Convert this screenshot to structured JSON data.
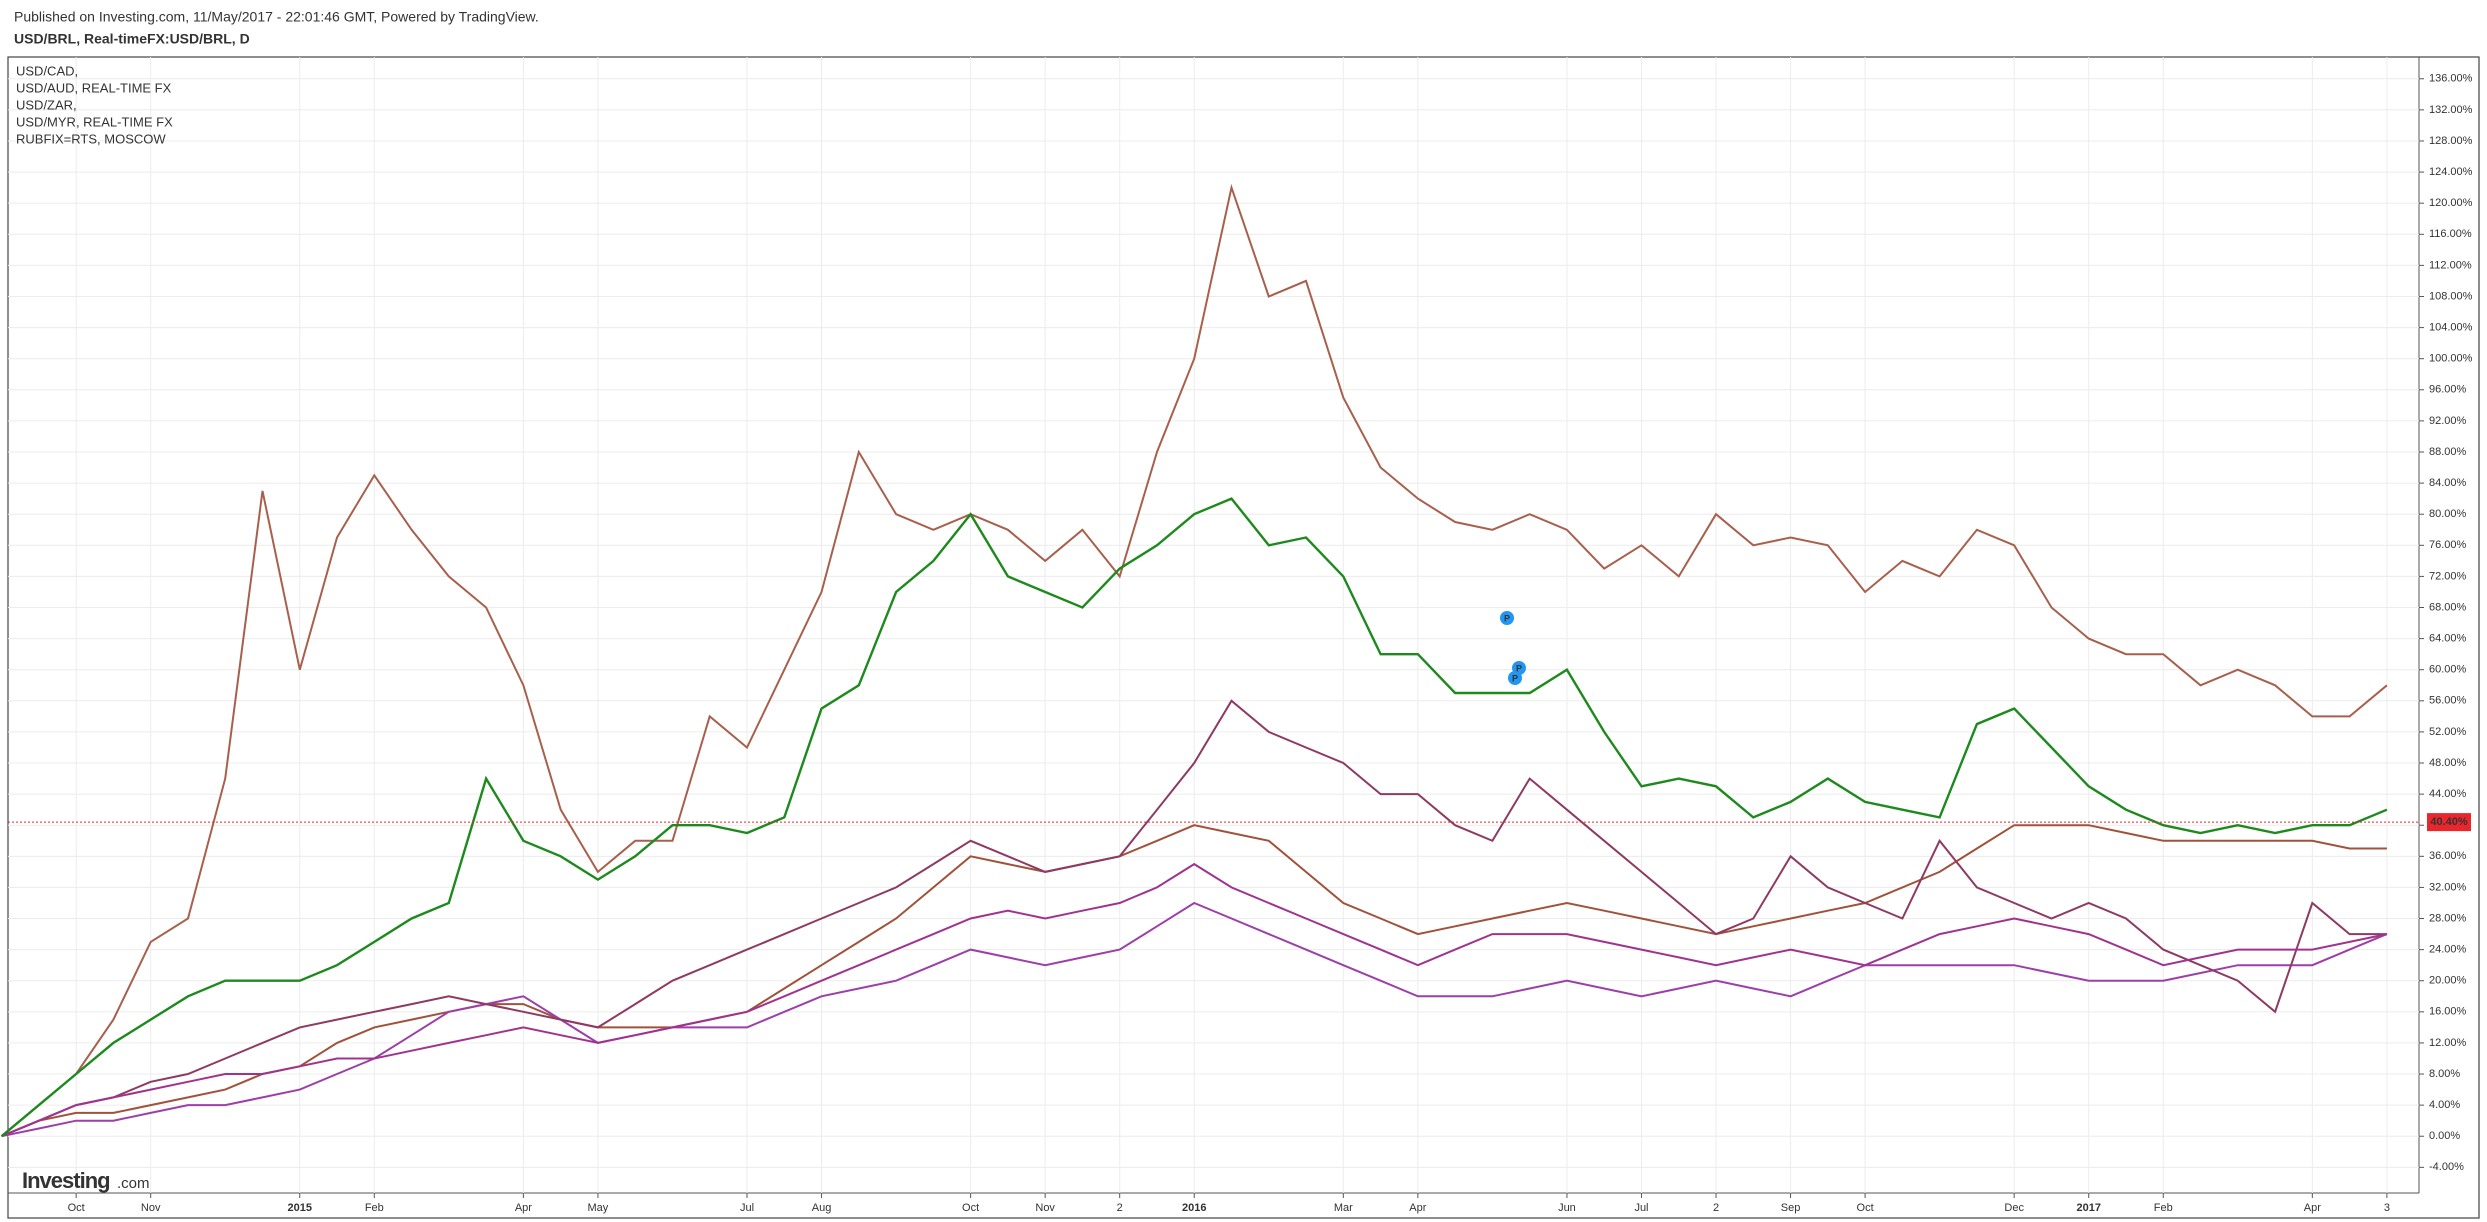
{
  "header": {
    "published": "Published on Investing.com, 11/May/2017 - 22:01:46 GMT, Powered by TradingView.",
    "symbol": "USD/BRL, Real-timeFX:USD/BRL, D"
  },
  "logo": {
    "brand": "Investing",
    "suffix": ".com"
  },
  "event_markers": [
    "P",
    "P",
    "P"
  ],
  "chart_data": {
    "type": "line",
    "categories": [
      null,
      null,
      "Oct",
      null,
      "Nov",
      null,
      null,
      null,
      "2015",
      null,
      "Feb",
      null,
      null,
      null,
      "Apr",
      null,
      "May",
      null,
      null,
      null,
      "Jul",
      null,
      "Aug",
      null,
      null,
      null,
      "Oct",
      null,
      "Nov",
      null,
      "2",
      null,
      "2016",
      null,
      null,
      null,
      "Mar",
      null,
      "Apr",
      null,
      null,
      null,
      "Jun",
      null,
      "Jul",
      null,
      "2",
      null,
      "Sep",
      null,
      "Oct",
      null,
      null,
      null,
      "Dec",
      null,
      "2017",
      null,
      "Feb",
      null,
      null,
      null,
      "Apr",
      null,
      "3"
    ],
    "bold_categories": [
      "2015",
      "2016",
      "2017"
    ],
    "main_series": {
      "color": "#1e8a1e",
      "values": [
        0,
        4,
        8,
        12,
        15,
        18,
        20,
        20,
        20,
        22,
        25,
        28,
        30,
        46,
        38,
        36,
        33,
        36,
        40,
        40,
        39,
        41,
        55,
        58,
        70,
        74,
        80,
        72,
        70,
        68,
        73,
        76,
        80,
        82,
        76,
        77,
        72,
        62,
        62,
        57,
        57,
        57,
        60,
        52,
        45,
        46,
        45,
        41,
        43,
        46,
        43,
        42,
        41,
        53,
        55,
        50,
        45,
        42,
        40,
        39,
        40,
        39,
        40,
        40,
        42
      ]
    },
    "series": [
      {
        "name": "USD/CAD,",
        "color": "#a0523a",
        "values": [
          0,
          2,
          3,
          3,
          4,
          5,
          6,
          8,
          9,
          12,
          14,
          15,
          16,
          17,
          17,
          15,
          14,
          14,
          14,
          15,
          16,
          19,
          22,
          25,
          28,
          32,
          36,
          35,
          34,
          35,
          36,
          38,
          40,
          39,
          38,
          34,
          30,
          28,
          26,
          27,
          28,
          29,
          30,
          29,
          28,
          27,
          26,
          27,
          28,
          29,
          30,
          32,
          34,
          37,
          40,
          40,
          40,
          39,
          38,
          38,
          38,
          38,
          38,
          37,
          37
        ]
      },
      {
        "name": "USD/AUD, REAL-TIME FX",
        "color": "#9c3fa8",
        "values": [
          0,
          1,
          2,
          2,
          3,
          4,
          4,
          5,
          6,
          8,
          10,
          13,
          16,
          17,
          18,
          15,
          12,
          13,
          14,
          14,
          14,
          16,
          18,
          19,
          20,
          22,
          24,
          23,
          22,
          23,
          24,
          27,
          30,
          28,
          26,
          24,
          22,
          20,
          18,
          18,
          18,
          19,
          20,
          19,
          18,
          19,
          20,
          19,
          18,
          20,
          22,
          22,
          22,
          22,
          22,
          21,
          20,
          20,
          20,
          21,
          22,
          22,
          22,
          24,
          26
        ]
      },
      {
        "name": "USD/ZAR,",
        "color": "#8e3a62",
        "values": [
          0,
          2,
          4,
          5,
          7,
          8,
          10,
          12,
          14,
          15,
          16,
          17,
          18,
          17,
          16,
          15,
          14,
          17,
          20,
          22,
          24,
          26,
          28,
          30,
          32,
          35,
          38,
          36,
          34,
          35,
          36,
          42,
          48,
          56,
          52,
          50,
          48,
          44,
          44,
          40,
          38,
          46,
          42,
          38,
          34,
          30,
          26,
          28,
          36,
          32,
          30,
          28,
          38,
          32,
          30,
          28,
          30,
          28,
          24,
          22,
          20,
          16,
          30,
          26,
          26
        ]
      },
      {
        "name": "USD/MYR, REAL-TIME FX",
        "color": "#a0338f",
        "values": [
          0,
          2,
          4,
          5,
          6,
          7,
          8,
          8,
          9,
          10,
          10,
          11,
          12,
          13,
          14,
          13,
          12,
          13,
          14,
          15,
          16,
          18,
          20,
          22,
          24,
          26,
          28,
          29,
          28,
          29,
          30,
          32,
          35,
          32,
          30,
          28,
          26,
          24,
          22,
          24,
          26,
          26,
          26,
          25,
          24,
          23,
          22,
          23,
          24,
          23,
          22,
          24,
          26,
          27,
          28,
          27,
          26,
          24,
          22,
          23,
          24,
          24,
          24,
          25,
          26
        ]
      },
      {
        "name": "RUBFIX=RTS, MOSCOW",
        "color": "#a8604c",
        "values": [
          0,
          4,
          8,
          15,
          25,
          28,
          46,
          83,
          60,
          77,
          85,
          78,
          72,
          68,
          58,
          42,
          34,
          38,
          38,
          54,
          50,
          60,
          70,
          88,
          80,
          78,
          80,
          78,
          74,
          78,
          72,
          88,
          100,
          122,
          108,
          110,
          95,
          86,
          82,
          79,
          78,
          80,
          78,
          73,
          76,
          72,
          80,
          76,
          77,
          76,
          70,
          74,
          72,
          78,
          76,
          68,
          64,
          62,
          62,
          58,
          60,
          58,
          54,
          54,
          58
        ]
      }
    ],
    "last_value": {
      "value": 40.4,
      "label": "40.40%",
      "color": "#e8262b"
    },
    "ylim": [
      -7.3,
      138.8
    ],
    "yticks": [
      {
        "value": -4,
        "label": "-4.00%"
      },
      {
        "value": 0,
        "label": "0.00%"
      },
      {
        "value": 4,
        "label": "4.00%"
      },
      {
        "value": 8,
        "label": "8.00%"
      },
      {
        "value": 12,
        "label": "12.00%"
      },
      {
        "value": 16,
        "label": "16.00%"
      },
      {
        "value": 20,
        "label": "20.00%"
      },
      {
        "value": 24,
        "label": "24.00%"
      },
      {
        "value": 28,
        "label": "28.00%"
      },
      {
        "value": 32,
        "label": "32.00%"
      },
      {
        "value": 36,
        "label": "36.00%"
      },
      {
        "value": 40,
        "label": "40.00%"
      },
      {
        "value": 44,
        "label": "44.00%"
      },
      {
        "value": 48,
        "label": "48.00%"
      },
      {
        "value": 52,
        "label": "52.00%"
      },
      {
        "value": 56,
        "label": "56.00%"
      },
      {
        "value": 60,
        "label": "60.00%"
      },
      {
        "value": 64,
        "label": "64.00%"
      },
      {
        "value": 68,
        "label": "68.00%"
      },
      {
        "value": 72,
        "label": "72.00%"
      },
      {
        "value": 76,
        "label": "76.00%"
      },
      {
        "value": 80,
        "label": "80.00%"
      },
      {
        "value": 84,
        "label": "84.00%"
      },
      {
        "value": 88,
        "label": "88.00%"
      },
      {
        "value": 92,
        "label": "92.00%"
      },
      {
        "value": 96,
        "label": "96.00%"
      },
      {
        "value": 100,
        "label": "100.00%"
      },
      {
        "value": 104,
        "label": "104.00%"
      },
      {
        "value": 108,
        "label": "108.00%"
      },
      {
        "value": 112,
        "label": "112.00%"
      },
      {
        "value": 116,
        "label": "116.00%"
      },
      {
        "value": 120,
        "label": "120.00%"
      },
      {
        "value": 124,
        "label": "124.00%"
      },
      {
        "value": 128,
        "label": "128.00%"
      },
      {
        "value": 132,
        "label": "132.00%"
      },
      {
        "value": 136,
        "label": "136.00%"
      }
    ],
    "grid": true
  }
}
